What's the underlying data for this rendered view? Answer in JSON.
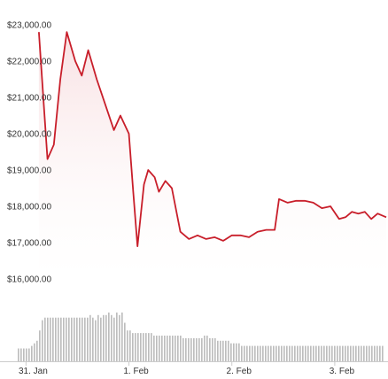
{
  "chart_data": {
    "type": "line",
    "title": "",
    "xlabel": "",
    "ylabel": "",
    "ylim": [
      16000,
      23000
    ],
    "yticks": [
      {
        "value": 23000,
        "label": "$23,000.00"
      },
      {
        "value": 22000,
        "label": "$22,000.00"
      },
      {
        "value": 21000,
        "label": "$21,000.00"
      },
      {
        "value": 20000,
        "label": "$20,000.00"
      },
      {
        "value": 19000,
        "label": "$19,000.00"
      },
      {
        "value": 18000,
        "label": "$18,000.00"
      },
      {
        "value": 17000,
        "label": "$17,000.00"
      },
      {
        "value": 16000,
        "label": "$16,000.00"
      }
    ],
    "xrange": [
      "2018-01-30 20:00",
      "2018-02-03 12:00"
    ],
    "xticks": [
      {
        "time": "2018-01-31 00:00",
        "label": "31. Jan"
      },
      {
        "time": "2018-02-01 00:00",
        "label": "1. Feb"
      },
      {
        "time": "2018-02-02 00:00",
        "label": "2. Feb"
      },
      {
        "time": "2018-02-03 00:00",
        "label": "3. Feb"
      }
    ],
    "colors": {
      "line": "#c81e2a",
      "area": "#fbe7e8",
      "volume": "#bdbdbd",
      "axis": "#cccccc"
    },
    "series": [
      {
        "values": [
          [
            "2018-01-31 03:00",
            22800
          ],
          [
            "2018-01-31 05:00",
            19300
          ],
          [
            "2018-01-31 06:30",
            19700
          ],
          [
            "2018-01-31 08:00",
            21500
          ],
          [
            "2018-01-31 09:30",
            22800
          ],
          [
            "2018-01-31 11:30",
            22000
          ],
          [
            "2018-01-31 13:00",
            21600
          ],
          [
            "2018-01-31 14:30",
            22300
          ],
          [
            "2018-01-31 16:30",
            21500
          ],
          [
            "2018-01-31 18:30",
            20800
          ],
          [
            "2018-01-31 20:30",
            20100
          ],
          [
            "2018-01-31 22:00",
            20500
          ],
          [
            "2018-02-01 00:00",
            20000
          ],
          [
            "2018-02-01 01:00",
            18400
          ],
          [
            "2018-02-01 02:00",
            16900
          ],
          [
            "2018-02-01 03:30",
            18600
          ],
          [
            "2018-02-01 04:30",
            19000
          ],
          [
            "2018-02-01 06:00",
            18800
          ],
          [
            "2018-02-01 07:00",
            18400
          ],
          [
            "2018-02-01 08:30",
            18700
          ],
          [
            "2018-02-01 10:00",
            18500
          ],
          [
            "2018-02-01 12:00",
            17300
          ],
          [
            "2018-02-01 14:00",
            17100
          ],
          [
            "2018-02-01 16:00",
            17200
          ],
          [
            "2018-02-01 18:00",
            17100
          ],
          [
            "2018-02-01 20:00",
            17150
          ],
          [
            "2018-02-01 22:00",
            17050
          ],
          [
            "2018-02-02 00:00",
            17200
          ],
          [
            "2018-02-02 02:00",
            17200
          ],
          [
            "2018-02-02 04:00",
            17150
          ],
          [
            "2018-02-02 06:00",
            17300
          ],
          [
            "2018-02-02 08:00",
            17350
          ],
          [
            "2018-02-02 10:00",
            17350
          ],
          [
            "2018-02-02 11:00",
            18200
          ],
          [
            "2018-02-02 13:00",
            18100
          ],
          [
            "2018-02-02 15:00",
            18150
          ],
          [
            "2018-02-02 17:00",
            18150
          ],
          [
            "2018-02-02 19:00",
            18100
          ],
          [
            "2018-02-02 21:00",
            17950
          ],
          [
            "2018-02-02 23:00",
            18000
          ],
          [
            "2018-02-03 01:00",
            17650
          ],
          [
            "2018-02-03 02:30",
            17700
          ],
          [
            "2018-02-03 04:00",
            17850
          ],
          [
            "2018-02-03 05:30",
            17800
          ],
          [
            "2018-02-03 07:00",
            17850
          ],
          [
            "2018-02-03 08:30",
            17650
          ],
          [
            "2018-02-03 10:00",
            17800
          ],
          [
            "2018-02-03 12:00",
            17700
          ]
        ]
      }
    ],
    "volume": {
      "note_units": "relative (0-1, no axis shown)",
      "values": [
        0.25,
        0.25,
        0.25,
        0.25,
        0.25,
        0.3,
        0.35,
        0.4,
        0.6,
        0.8,
        0.85,
        0.85,
        0.85,
        0.85,
        0.85,
        0.85,
        0.85,
        0.85,
        0.85,
        0.85,
        0.85,
        0.85,
        0.85,
        0.85,
        0.85,
        0.85,
        0.85,
        0.9,
        0.85,
        0.8,
        0.9,
        0.85,
        0.9,
        0.9,
        0.95,
        0.9,
        0.85,
        0.95,
        0.9,
        0.95,
        0.75,
        0.6,
        0.6,
        0.55,
        0.55,
        0.55,
        0.55,
        0.55,
        0.55,
        0.55,
        0.55,
        0.5,
        0.5,
        0.5,
        0.5,
        0.5,
        0.5,
        0.5,
        0.5,
        0.5,
        0.5,
        0.5,
        0.45,
        0.45,
        0.45,
        0.45,
        0.45,
        0.45,
        0.45,
        0.45,
        0.5,
        0.5,
        0.45,
        0.45,
        0.45,
        0.4,
        0.4,
        0.4,
        0.4,
        0.4,
        0.35,
        0.35,
        0.35,
        0.35,
        0.3,
        0.3,
        0.3,
        0.3,
        0.3,
        0.3,
        0.3,
        0.3,
        0.3,
        0.3,
        0.3,
        0.3,
        0.3,
        0.3,
        0.3,
        0.3,
        0.3,
        0.3,
        0.3,
        0.3,
        0.3,
        0.3,
        0.3,
        0.3,
        0.3,
        0.3,
        0.3,
        0.3,
        0.3,
        0.3,
        0.3,
        0.3,
        0.3,
        0.3,
        0.3,
        0.3,
        0.3,
        0.3,
        0.3,
        0.3,
        0.3,
        0.3,
        0.3,
        0.3,
        0.3,
        0.3,
        0.3,
        0.3,
        0.3,
        0.3,
        0.3,
        0.3,
        0.3,
        0.3
      ]
    }
  }
}
